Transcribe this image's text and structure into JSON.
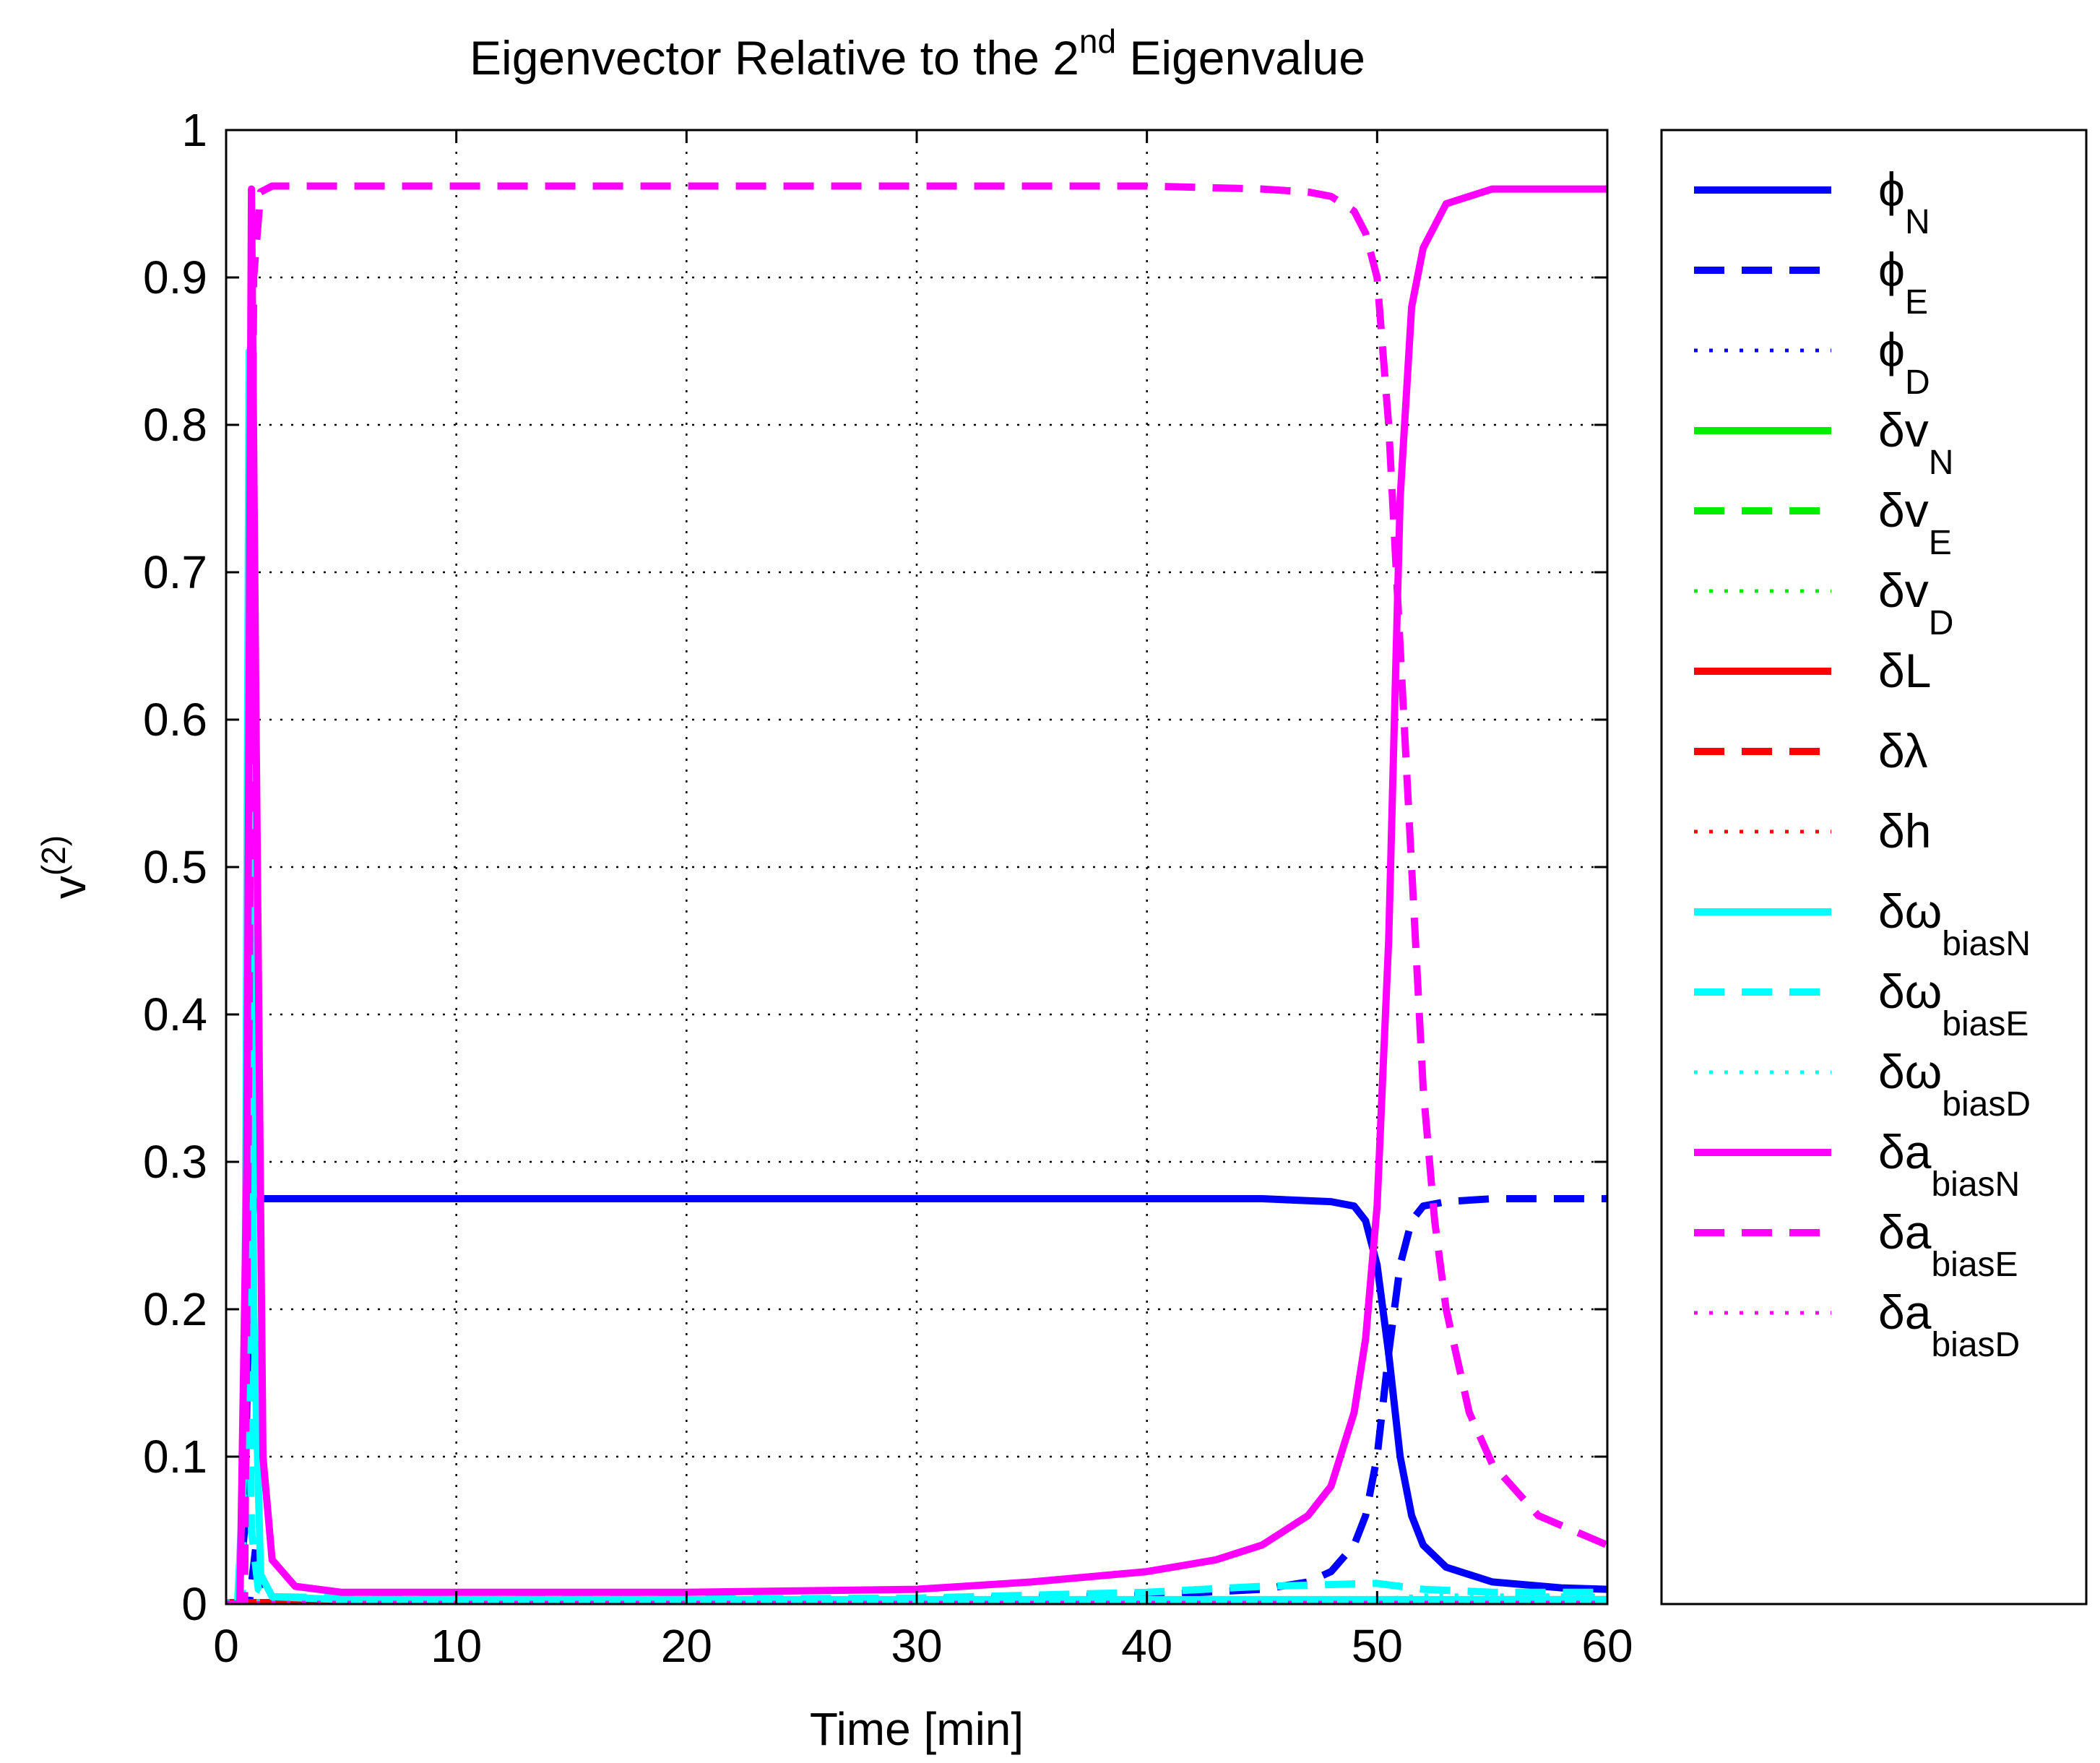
{
  "chart_data": {
    "type": "line",
    "title": {
      "main": "Eigenvector Relative to the 2",
      "sup": "nd",
      "tail": " Eigenvalue"
    },
    "xlabel": "Time [min]",
    "ylabel": {
      "main": "v",
      "sup": "(2)"
    },
    "xlim": [
      0,
      60
    ],
    "ylim": [
      0,
      1
    ],
    "xticks": [
      0,
      10,
      20,
      30,
      40,
      50,
      60
    ],
    "yticks": [
      0,
      0.1,
      0.2,
      0.3,
      0.4,
      0.5,
      0.6,
      0.7,
      0.8,
      0.9,
      1
    ],
    "ytick_labels": [
      "0",
      "0.1",
      "0.2",
      "0.3",
      "0.4",
      "0.5",
      "0.6",
      "0.7",
      "0.8",
      "0.9",
      "1"
    ],
    "grid": true,
    "legend_position": "outside-right",
    "series": [
      {
        "name": "phi_N",
        "label": "ϕ",
        "sub": "N",
        "color": "#0000ff",
        "style": "solid",
        "x": [
          0,
          0.5,
          0.8,
          1.0,
          1.2,
          1.5,
          2,
          5,
          10,
          20,
          30,
          40,
          45,
          48,
          49,
          49.5,
          50,
          50.5,
          51,
          51.5,
          52,
          53,
          55,
          58,
          60
        ],
        "y": [
          0,
          0,
          0.05,
          0.22,
          0.27,
          0.275,
          0.275,
          0.275,
          0.275,
          0.275,
          0.275,
          0.275,
          0.275,
          0.273,
          0.27,
          0.26,
          0.23,
          0.17,
          0.1,
          0.06,
          0.04,
          0.025,
          0.015,
          0.011,
          0.01
        ]
      },
      {
        "name": "phi_E",
        "label": "ϕ",
        "sub": "E",
        "color": "#0000ff",
        "style": "dashed",
        "x": [
          0,
          1.0,
          1.3,
          1.6,
          2,
          3,
          10,
          20,
          30,
          40,
          45,
          47,
          48,
          49,
          49.5,
          50,
          50.5,
          51,
          51.5,
          52,
          53,
          55,
          60
        ],
        "y": [
          0,
          0,
          0.04,
          0.01,
          0.005,
          0.003,
          0.002,
          0.002,
          0.003,
          0.006,
          0.01,
          0.015,
          0.022,
          0.04,
          0.06,
          0.1,
          0.17,
          0.23,
          0.26,
          0.27,
          0.273,
          0.275,
          0.275
        ]
      },
      {
        "name": "phi_D",
        "label": "ϕ",
        "sub": "D",
        "color": "#0000ff",
        "style": "dotted",
        "x": [
          0,
          60
        ],
        "y": [
          0.001,
          0.001
        ]
      },
      {
        "name": "dv_N",
        "label": "δv",
        "sub": "N",
        "color": "#00ee00",
        "style": "solid",
        "x": [
          0,
          60
        ],
        "y": [
          0.001,
          0.001
        ]
      },
      {
        "name": "dv_E",
        "label": "δv",
        "sub": "E",
        "color": "#00ee00",
        "style": "dashed",
        "x": [
          0,
          60
        ],
        "y": [
          0.001,
          0.001
        ]
      },
      {
        "name": "dv_D",
        "label": "δv",
        "sub": "D",
        "color": "#00ee00",
        "style": "dotted",
        "x": [
          0,
          60
        ],
        "y": [
          0.001,
          0.001
        ]
      },
      {
        "name": "dL",
        "label": "δL",
        "sub": "",
        "color": "#ff0000",
        "style": "solid",
        "x": [
          0,
          50,
          52,
          55,
          60
        ],
        "y": [
          0.001,
          0.001,
          0.002,
          0.003,
          0.003
        ]
      },
      {
        "name": "dlambda",
        "label": "δλ",
        "sub": "",
        "color": "#ff0000",
        "style": "dashed",
        "x": [
          0,
          60
        ],
        "y": [
          0.001,
          0.001
        ]
      },
      {
        "name": "dh",
        "label": "δh",
        "sub": "",
        "color": "#ff0000",
        "style": "dotted",
        "x": [
          0,
          60
        ],
        "y": [
          0.001,
          0.001
        ]
      },
      {
        "name": "dw_biasN",
        "label": "δω",
        "sub": "biasN",
        "color": "#00ffff",
        "style": "solid",
        "x": [
          0,
          0.5,
          0.8,
          1.0,
          1.2,
          1.5,
          2,
          5,
          60
        ],
        "y": [
          0,
          0,
          0.1,
          0.85,
          0.2,
          0.02,
          0.005,
          0.003,
          0.003
        ]
      },
      {
        "name": "dw_biasE",
        "label": "δω",
        "sub": "biasE",
        "color": "#00ffff",
        "style": "dashed",
        "x": [
          0,
          0.7,
          0.9,
          1.1,
          1.4,
          2,
          10,
          30,
          40,
          45,
          50,
          52,
          55,
          60
        ],
        "y": [
          0,
          0,
          0.3,
          0.05,
          0.01,
          0.005,
          0.003,
          0.004,
          0.008,
          0.012,
          0.014,
          0.01,
          0.008,
          0.008
        ]
      },
      {
        "name": "dw_biasD",
        "label": "δω",
        "sub": "biasD",
        "color": "#00ffff",
        "style": "dotted",
        "x": [
          0,
          50,
          52,
          60
        ],
        "y": [
          0.002,
          0.003,
          0.006,
          0.006
        ]
      },
      {
        "name": "da_biasN",
        "label": "δa",
        "sub": "biasN",
        "color": "#ff00ff",
        "style": "solid",
        "x": [
          0,
          0.6,
          0.9,
          1.1,
          1.3,
          1.6,
          2,
          3,
          5,
          10,
          20,
          30,
          35,
          40,
          43,
          45,
          47,
          48,
          49,
          49.5,
          50,
          50.5,
          51,
          51.5,
          52,
          53,
          55,
          58,
          60
        ],
        "y": [
          0,
          0,
          0.3,
          0.96,
          0.6,
          0.1,
          0.03,
          0.012,
          0.008,
          0.008,
          0.008,
          0.01,
          0.015,
          0.022,
          0.03,
          0.04,
          0.06,
          0.08,
          0.13,
          0.18,
          0.27,
          0.45,
          0.75,
          0.88,
          0.92,
          0.95,
          0.96,
          0.96,
          0.96
        ]
      },
      {
        "name": "da_biasE",
        "label": "δa",
        "sub": "biasE",
        "color": "#ff00ff",
        "style": "dashed",
        "x": [
          0,
          0.8,
          1.0,
          1.2,
          1.5,
          2,
          10,
          20,
          30,
          40,
          45,
          47,
          48,
          49,
          49.5,
          50,
          50.5,
          51,
          51.5,
          52,
          52.5,
          53,
          54,
          55,
          57,
          60
        ],
        "y": [
          0,
          0,
          0.4,
          0.9,
          0.958,
          0.962,
          0.962,
          0.962,
          0.962,
          0.962,
          0.96,
          0.958,
          0.955,
          0.945,
          0.93,
          0.9,
          0.8,
          0.65,
          0.5,
          0.35,
          0.26,
          0.2,
          0.13,
          0.095,
          0.06,
          0.04
        ]
      },
      {
        "name": "da_biasD",
        "label": "δa",
        "sub": "biasD",
        "color": "#ff00ff",
        "style": "dotted",
        "x": [
          0,
          60
        ],
        "y": [
          0.001,
          0.001
        ]
      }
    ]
  }
}
